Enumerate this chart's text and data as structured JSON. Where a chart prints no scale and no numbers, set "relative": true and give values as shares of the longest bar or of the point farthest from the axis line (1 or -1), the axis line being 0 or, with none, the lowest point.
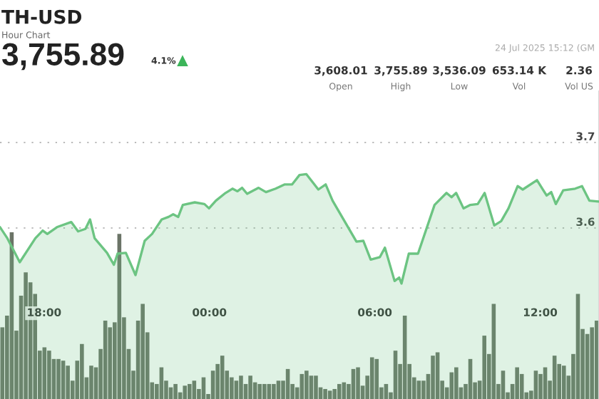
{
  "chart_data": [
    {
      "type": "area",
      "title": "TH-USD",
      "subtitle": "Hour Chart",
      "annotations": [
        "3,755.89",
        "4.1%",
        "24 Jul 2025 15:12 (GM",
        "3,608.01",
        "Open",
        "3,755.89",
        "High",
        "3,536.09",
        "Low",
        "653.14 K",
        "Vol",
        "2.36",
        "Vol US"
      ],
      "series": [
        {
          "color": "#6cc482",
          "x": [
            "2025-07-23T16:24",
            "2025-07-23T16:40",
            "2025-07-23T17:07",
            "2025-07-23T17:41",
            "2025-07-23T17:57",
            "2025-07-23T18:07",
            "2025-07-23T18:28",
            "2025-07-23T18:59",
            "2025-07-23T19:14",
            "2025-07-23T19:30",
            "2025-07-23T19:40",
            "2025-07-23T19:50",
            "2025-07-23T20:17",
            "2025-07-23T20:32",
            "2025-07-23T20:40",
            "2025-07-23T20:58",
            "2025-07-23T21:19",
            "2025-07-23T21:39",
            "2025-07-23T21:55",
            "2025-07-23T22:16",
            "2025-07-23T22:31",
            "2025-07-23T22:41",
            "2025-07-23T22:52",
            "2025-07-23T23:02",
            "2025-07-23T23:28",
            "2025-07-23T23:49",
            "2025-07-23T23:59",
            "2025-07-24T00:14",
            "2025-07-24T00:35",
            "2025-07-24T00:50",
            "2025-07-24T01:01",
            "2025-07-24T01:11",
            "2025-07-24T01:22",
            "2025-07-24T01:47",
            "2025-07-24T02:03",
            "2025-07-24T02:24",
            "2025-07-24T02:44",
            "2025-07-24T03:00",
            "2025-07-24T03:16",
            "2025-07-24T03:31",
            "2025-07-24T03:57",
            "2025-07-24T04:13",
            "2025-07-24T04:28",
            "2025-07-24T05:20",
            "2025-07-24T05:35",
            "2025-07-24T05:51",
            "2025-07-24T06:11",
            "2025-07-24T06:22",
            "2025-07-24T06:43",
            "2025-07-24T06:53",
            "2025-07-24T06:58",
            "2025-07-24T07:14",
            "2025-07-24T07:34",
            "2025-07-24T08:10",
            "2025-07-24T08:36",
            "2025-07-24T08:47",
            "2025-07-24T08:57",
            "2025-07-24T09:13",
            "2025-07-24T09:28",
            "2025-07-24T09:44",
            "2025-07-24T09:59",
            "2025-07-24T10:20",
            "2025-07-24T10:35",
            "2025-07-24T10:51",
            "2025-07-24T11:11",
            "2025-07-24T11:22",
            "2025-07-24T11:53",
            "2025-07-24T12:14",
            "2025-07-24T12:24",
            "2025-07-24T12:34",
            "2025-07-24T12:50",
            "2025-07-24T13:16",
            "2025-07-24T13:31",
            "2025-07-24T13:47",
            "2025-07-24T14:07"
          ],
          "values": [
            3.601,
            3.588,
            3.56,
            3.588,
            3.597,
            3.593,
            3.601,
            3.607,
            3.596,
            3.599,
            3.61,
            3.588,
            3.571,
            3.557,
            3.57,
            3.571,
            3.545,
            3.585,
            3.593,
            3.61,
            3.613,
            3.616,
            3.613,
            3.627,
            3.63,
            3.628,
            3.623,
            3.632,
            3.641,
            3.646,
            3.643,
            3.647,
            3.64,
            3.647,
            3.642,
            3.646,
            3.651,
            3.651,
            3.662,
            3.663,
            3.645,
            3.651,
            3.632,
            3.584,
            3.585,
            3.563,
            3.566,
            3.577,
            3.538,
            3.542,
            3.535,
            3.57,
            3.57,
            3.627,
            3.641,
            3.636,
            3.641,
            3.623,
            3.627,
            3.628,
            3.641,
            3.603,
            3.608,
            3.623,
            3.649,
            3.645,
            3.656,
            3.638,
            3.642,
            3.628,
            3.644,
            3.646,
            3.649,
            3.632,
            3.631
          ]
        }
      ],
      "xlim": [
        "2025-07-23T16:24",
        "2025-07-24T14:08"
      ],
      "xticks": [
        {
          "value": "2025-07-23T18:00",
          "label": "18:00"
        },
        {
          "value": "2025-07-24T00:00",
          "label": "00:00"
        },
        {
          "value": "2025-07-24T06:00",
          "label": "06:00"
        },
        {
          "value": "2025-07-24T12:00",
          "label": "12:00"
        }
      ],
      "ylim": [
        3.4,
        3.76
      ],
      "yticks": [
        3.6,
        3.7
      ],
      "grid": "y"
    },
    {
      "type": "bar",
      "relative": true,
      "color": "#6b7467",
      "categories": [
        null,
        null,
        null,
        null,
        null,
        null,
        null,
        null,
        null,
        null,
        null,
        null,
        null,
        null,
        null,
        null,
        null,
        null,
        null,
        null,
        null,
        null,
        null,
        null,
        null,
        null,
        null,
        null,
        null,
        null,
        null,
        null,
        null,
        null,
        null,
        null,
        null,
        null,
        null,
        null,
        null,
        null,
        null,
        null,
        null,
        null,
        null,
        null,
        null,
        null,
        null,
        null,
        null,
        null,
        null,
        null,
        null,
        null,
        null,
        null,
        null,
        null,
        null,
        null,
        null,
        null,
        null,
        null,
        null,
        null,
        null,
        null,
        null,
        null,
        null,
        null,
        null,
        null,
        null,
        null,
        null,
        null,
        null,
        null,
        null,
        null,
        null,
        null,
        null,
        null,
        null,
        null,
        null,
        null,
        null,
        null,
        null,
        null,
        null,
        null,
        null,
        null,
        null,
        null,
        null,
        null,
        null,
        null,
        null,
        null,
        null,
        null,
        null,
        null,
        null,
        null,
        null,
        null,
        null,
        null,
        null,
        null,
        null,
        null,
        null,
        null,
        null,
        null
      ],
      "values": [
        0.43,
        0.5,
        1.0,
        0.41,
        0.62,
        0.76,
        0.7,
        0.63,
        0.29,
        0.31,
        0.29,
        0.24,
        0.24,
        0.23,
        0.2,
        0.11,
        0.23,
        0.33,
        0.13,
        0.2,
        0.19,
        0.3,
        0.47,
        0.43,
        0.46,
        0.99,
        0.49,
        0.3,
        0.17,
        0.47,
        0.57,
        0.4,
        0.1,
        0.09,
        0.19,
        0.11,
        0.07,
        0.09,
        0.04,
        0.08,
        0.09,
        0.11,
        0.06,
        0.13,
        0.03,
        0.17,
        0.21,
        0.26,
        0.17,
        0.13,
        0.11,
        0.14,
        0.09,
        0.14,
        0.1,
        0.09,
        0.09,
        0.09,
        0.09,
        0.11,
        0.11,
        0.18,
        0.09,
        0.07,
        0.15,
        0.17,
        0.14,
        0.14,
        0.07,
        0.06,
        0.05,
        0.06,
        0.09,
        0.1,
        0.09,
        0.18,
        0.19,
        0.08,
        0.14,
        0.25,
        0.24,
        0.07,
        0.09,
        0.04,
        0.29,
        0.21,
        0.5,
        0.21,
        0.13,
        0.11,
        0.11,
        0.15,
        0.26,
        0.28,
        0.11,
        0.07,
        0.16,
        0.19,
        0.07,
        0.09,
        0.24,
        0.1,
        0.11,
        0.38,
        0.27,
        0.57,
        0.09,
        0.17,
        0.04,
        0.09,
        0.19,
        0.15,
        0.04,
        0.05,
        0.17,
        0.15,
        0.19,
        0.11,
        0.26,
        0.21,
        0.2,
        0.14,
        0.27,
        0.63,
        0.42,
        0.39,
        0.43,
        0.47
      ]
    }
  ]
}
